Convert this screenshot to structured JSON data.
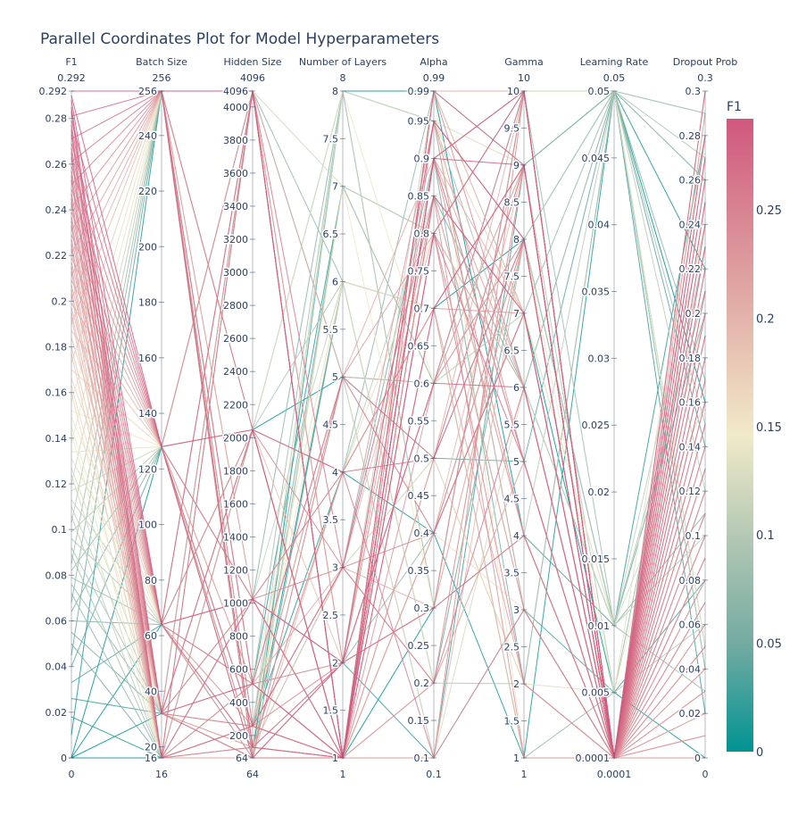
{
  "chart_data": {
    "type": "parallel-coordinates",
    "title": "Parallel Coordinates Plot for Model Hyperparameters",
    "color_dimension": "F1",
    "colorscale": [
      "#009392",
      "#72aaa1",
      "#b1c7b3",
      "#f1eac8",
      "#e5b9ad",
      "#d98994",
      "#d0587e"
    ],
    "colorbar": {
      "title": "F1",
      "min": 0,
      "max": 0.292,
      "ticks": [
        "0",
        "0.05",
        "0.1",
        "0.15",
        "0.2",
        "0.25"
      ],
      "tick_values": [
        0,
        0.05,
        0.1,
        0.15,
        0.2,
        0.25
      ]
    },
    "dimensions": [
      {
        "label": "F1",
        "min": 0,
        "max": 0.292,
        "min_label": "0",
        "max_label": "0.292",
        "ticks": [
          0,
          0.02,
          0.04,
          0.06,
          0.08,
          0.1,
          0.12,
          0.14,
          0.16,
          0.18,
          0.2,
          0.22,
          0.24,
          0.26,
          0.28
        ],
        "tick_labels": [
          "0",
          "0.02",
          "0.04",
          "0.06",
          "0.08",
          "0.1",
          "0.12",
          "0.14",
          "0.16",
          "0.18",
          "0.2",
          "0.22",
          "0.24",
          "0.26",
          "0.28"
        ]
      },
      {
        "label": "Batch Size",
        "min": 16,
        "max": 256,
        "min_label": "16",
        "max_label": "256",
        "ticks": [
          20,
          40,
          60,
          80,
          100,
          120,
          140,
          160,
          180,
          200,
          220,
          240
        ],
        "tick_labels": [
          "20",
          "40",
          "60",
          "80",
          "100",
          "120",
          "140",
          "160",
          "180",
          "200",
          "220",
          "240"
        ]
      },
      {
        "label": "Hidden Size",
        "min": 64,
        "max": 4096,
        "min_label": "64",
        "max_label": "4096",
        "ticks": [
          200,
          400,
          600,
          800,
          1000,
          1200,
          1400,
          1600,
          1800,
          2000,
          2200,
          2400,
          2600,
          2800,
          3000,
          3200,
          3400,
          3600,
          3800,
          4000
        ],
        "tick_labels": [
          "200",
          "400",
          "600",
          "800",
          "1000",
          "1200",
          "1400",
          "1600",
          "1800",
          "2000",
          "2200",
          "2400",
          "2600",
          "2800",
          "3000",
          "3200",
          "3400",
          "3600",
          "3800",
          "4000"
        ]
      },
      {
        "label": "Number of Layers",
        "min": 1,
        "max": 8,
        "min_label": "1",
        "max_label": "8",
        "ticks": [
          1.5,
          2,
          2.5,
          3,
          3.5,
          4,
          4.5,
          5,
          5.5,
          6,
          6.5,
          7,
          7.5
        ],
        "tick_labels": [
          "1.5",
          "2",
          "2.5",
          "3",
          "3.5",
          "4",
          "4.5",
          "5",
          "5.5",
          "6",
          "6.5",
          "7",
          "7.5"
        ]
      },
      {
        "label": "Alpha",
        "min": 0.1,
        "max": 0.99,
        "min_label": "0.1",
        "max_label": "0.99",
        "ticks": [
          0.15,
          0.2,
          0.25,
          0.3,
          0.35,
          0.4,
          0.45,
          0.5,
          0.55,
          0.6,
          0.65,
          0.7,
          0.75,
          0.8,
          0.85,
          0.9,
          0.95
        ],
        "tick_labels": [
          "0.15",
          "0.2",
          "0.25",
          "0.3",
          "0.35",
          "0.4",
          "0.45",
          "0.5",
          "0.55",
          "0.6",
          "0.65",
          "0.7",
          "0.75",
          "0.8",
          "0.85",
          "0.9",
          "0.95"
        ]
      },
      {
        "label": "Gamma",
        "min": 1,
        "max": 10,
        "min_label": "1",
        "max_label": "10",
        "ticks": [
          1.5,
          2,
          2.5,
          3,
          3.5,
          4,
          4.5,
          5,
          5.5,
          6,
          6.5,
          7,
          7.5,
          8,
          8.5,
          9,
          9.5
        ],
        "tick_labels": [
          "1.5",
          "2",
          "2.5",
          "3",
          "3.5",
          "4",
          "4.5",
          "5",
          "5.5",
          "6",
          "6.5",
          "7",
          "7.5",
          "8",
          "8.5",
          "9",
          "9.5"
        ]
      },
      {
        "label": "Learning Rate",
        "min": 0.0001,
        "max": 0.05,
        "min_label": "0.0001",
        "max_label": "0.05",
        "ticks": [
          0.005,
          0.01,
          0.015,
          0.02,
          0.025,
          0.03,
          0.035,
          0.04,
          0.045
        ],
        "tick_labels": [
          "0.005",
          "0.01",
          "0.015",
          "0.02",
          "0.025",
          "0.03",
          "0.035",
          "0.04",
          "0.045"
        ]
      },
      {
        "label": "Dropout Prob",
        "min": 0,
        "max": 0.3,
        "min_label": "0",
        "max_label": "0.3",
        "ticks": [
          0.02,
          0.04,
          0.06,
          0.08,
          0.1,
          0.12,
          0.14,
          0.16,
          0.18,
          0.2,
          0.22,
          0.24,
          0.26,
          0.28
        ],
        "tick_labels": [
          "0.02",
          "0.04",
          "0.06",
          "0.08",
          "0.1",
          "0.12",
          "0.14",
          "0.16",
          "0.18",
          "0.2",
          "0.22",
          "0.24",
          "0.26",
          "0.28"
        ]
      }
    ],
    "records": [
      [
        0.292,
        256,
        4096,
        1,
        0.9,
        9,
        0.0001,
        0.3
      ],
      [
        0.29,
        128,
        2048,
        1,
        0.8,
        10,
        0.0001,
        0.28
      ],
      [
        0.288,
        64,
        1024,
        2,
        0.95,
        8,
        0.0001,
        0.27
      ],
      [
        0.285,
        32,
        512,
        1,
        0.7,
        9,
        0.0001,
        0.26
      ],
      [
        0.283,
        16,
        256,
        3,
        0.85,
        7,
        0.0001,
        0.25
      ],
      [
        0.281,
        256,
        128,
        1,
        0.9,
        10,
        0.0001,
        0.24
      ],
      [
        0.279,
        128,
        64,
        2,
        0.6,
        6,
        0.0001,
        0.23
      ],
      [
        0.277,
        64,
        4096,
        1,
        0.99,
        9,
        0.0001,
        0.22
      ],
      [
        0.275,
        32,
        2048,
        4,
        0.5,
        8,
        0.0001,
        0.21
      ],
      [
        0.273,
        16,
        1024,
        1,
        0.8,
        5,
        0.0001,
        0.2
      ],
      [
        0.271,
        256,
        512,
        5,
        0.4,
        7,
        0.0001,
        0.19
      ],
      [
        0.269,
        128,
        256,
        1,
        0.9,
        10,
        0.0001,
        0.18
      ],
      [
        0.267,
        64,
        128,
        2,
        0.3,
        4,
        0.0001,
        0.17
      ],
      [
        0.265,
        32,
        64,
        1,
        0.7,
        9,
        0.0001,
        0.16
      ],
      [
        0.263,
        16,
        4096,
        3,
        0.2,
        6,
        0.0001,
        0.15
      ],
      [
        0.261,
        256,
        2048,
        1,
        0.95,
        8,
        0.0001,
        0.14
      ],
      [
        0.259,
        128,
        1024,
        4,
        0.1,
        3,
        0.0001,
        0.13
      ],
      [
        0.257,
        64,
        512,
        1,
        0.85,
        7,
        0.0001,
        0.12
      ],
      [
        0.255,
        32,
        256,
        2,
        0.6,
        10,
        0.0001,
        0.11
      ],
      [
        0.253,
        16,
        128,
        1,
        0.9,
        5,
        0.0001,
        0.1
      ],
      [
        0.251,
        256,
        64,
        5,
        0.5,
        9,
        0.0001,
        0.09
      ],
      [
        0.249,
        128,
        4096,
        1,
        0.8,
        2,
        0.0001,
        0.08
      ],
      [
        0.247,
        64,
        2048,
        3,
        0.4,
        8,
        0.0001,
        0.07
      ],
      [
        0.245,
        32,
        1024,
        1,
        0.99,
        6,
        0.0001,
        0.06
      ],
      [
        0.243,
        16,
        512,
        2,
        0.3,
        10,
        0.0001,
        0.05
      ],
      [
        0.241,
        256,
        256,
        1,
        0.9,
        4,
        0.0001,
        0.04
      ],
      [
        0.239,
        128,
        128,
        4,
        0.7,
        7,
        0.0001,
        0.03
      ],
      [
        0.237,
        64,
        64,
        1,
        0.2,
        9,
        0.0001,
        0.02
      ],
      [
        0.235,
        32,
        4096,
        2,
        0.85,
        1,
        0.0001,
        0.01
      ],
      [
        0.233,
        16,
        2048,
        1,
        0.6,
        8,
        0.0001,
        0
      ],
      [
        0.231,
        256,
        1024,
        3,
        0.95,
        5,
        0.0001,
        0.29
      ],
      [
        0.229,
        128,
        512,
        1,
        0.1,
        10,
        0.0001,
        0.27
      ],
      [
        0.227,
        64,
        256,
        5,
        0.8,
        3,
        0.0001,
        0.25
      ],
      [
        0.225,
        32,
        128,
        1,
        0.5,
        9,
        0.0001,
        0.23
      ],
      [
        0.223,
        16,
        64,
        2,
        0.9,
        6,
        0.0001,
        0.21
      ],
      [
        0.221,
        256,
        4096,
        1,
        0.4,
        7,
        0.0001,
        0.19
      ],
      [
        0.219,
        128,
        2048,
        4,
        0.7,
        2,
        0.0001,
        0.17
      ],
      [
        0.217,
        64,
        1024,
        1,
        0.99,
        10,
        0.0001,
        0.15
      ],
      [
        0.215,
        32,
        512,
        3,
        0.3,
        8,
        0.0001,
        0.13
      ],
      [
        0.213,
        16,
        256,
        1,
        0.85,
        4,
        0.0001,
        0.11
      ],
      [
        0.211,
        256,
        128,
        2,
        0.6,
        9,
        0.0001,
        0.09
      ],
      [
        0.209,
        128,
        64,
        1,
        0.2,
        5,
        0.0001,
        0.07
      ],
      [
        0.207,
        64,
        4096,
        5,
        0.9,
        7,
        0.0001,
        0.05
      ],
      [
        0.205,
        32,
        2048,
        1,
        0.5,
        10,
        0.0001,
        0.03
      ],
      [
        0.203,
        16,
        1024,
        2,
        0.95,
        3,
        0.0001,
        0.01
      ],
      [
        0.201,
        256,
        512,
        1,
        0.1,
        8,
        0.0001,
        0.28
      ],
      [
        0.199,
        128,
        256,
        3,
        0.8,
        6,
        0.0001,
        0.26
      ],
      [
        0.197,
        64,
        128,
        1,
        0.4,
        9,
        0.0001,
        0.24
      ],
      [
        0.195,
        32,
        64,
        4,
        0.7,
        1,
        0.0001,
        0.22
      ],
      [
        0.193,
        16,
        4096,
        1,
        0.99,
        7,
        0.0001,
        0.2
      ],
      [
        0.19,
        256,
        2048,
        2,
        0.3,
        10,
        0.0001,
        0.18
      ],
      [
        0.187,
        128,
        1024,
        1,
        0.85,
        4,
        0.0001,
        0.16
      ],
      [
        0.184,
        64,
        512,
        5,
        0.6,
        8,
        0.0001,
        0.14
      ],
      [
        0.18,
        32,
        256,
        1,
        0.9,
        5,
        0.0001,
        0.12
      ],
      [
        0.177,
        16,
        128,
        3,
        0.2,
        9,
        0.0001,
        0.1
      ],
      [
        0.173,
        256,
        64,
        1,
        0.5,
        2,
        0.0001,
        0.08
      ],
      [
        0.17,
        128,
        4096,
        2,
        0.95,
        7,
        0.0001,
        0.06
      ],
      [
        0.166,
        64,
        2048,
        1,
        0.1,
        10,
        0.0001,
        0.04
      ],
      [
        0.163,
        32,
        1024,
        4,
        0.8,
        6,
        0.0001,
        0.02
      ],
      [
        0.16,
        16,
        512,
        1,
        0.4,
        3,
        0.0001,
        0
      ],
      [
        0.156,
        256,
        256,
        6,
        0.7,
        9,
        0.0001,
        0.3
      ],
      [
        0.152,
        128,
        128,
        1,
        0.99,
        1,
        0.0001,
        0.25
      ],
      [
        0.149,
        64,
        64,
        7,
        0.3,
        8,
        0.005,
        0.2
      ],
      [
        0.145,
        32,
        4096,
        2,
        0.85,
        4,
        0.0001,
        0.15
      ],
      [
        0.142,
        16,
        2048,
        8,
        0.6,
        7,
        0.01,
        0.1
      ],
      [
        0.138,
        256,
        1024,
        1,
        0.9,
        10,
        0.05,
        0.05
      ],
      [
        0.134,
        128,
        512,
        6,
        0.2,
        5,
        0.0001,
        0
      ],
      [
        0.131,
        64,
        256,
        3,
        0.5,
        2,
        0.005,
        0.28
      ],
      [
        0.127,
        32,
        128,
        8,
        0.95,
        9,
        0.0001,
        0.22
      ],
      [
        0.124,
        16,
        64,
        5,
        0.1,
        6,
        0.01,
        0.16
      ],
      [
        0.12,
        256,
        4096,
        7,
        0.8,
        3,
        0.0001,
        0.1
      ],
      [
        0.117,
        128,
        2048,
        1,
        0.4,
        8,
        0.05,
        0.04
      ],
      [
        0.113,
        64,
        1024,
        6,
        0.7,
        1,
        0.0001,
        0.3
      ],
      [
        0.11,
        32,
        512,
        2,
        0.99,
        7,
        0.01,
        0.24
      ],
      [
        0.106,
        16,
        256,
        8,
        0.3,
        10,
        0.0001,
        0.18
      ],
      [
        0.103,
        256,
        128,
        4,
        0.85,
        4,
        0.05,
        0.12
      ],
      [
        0.099,
        128,
        64,
        7,
        0.6,
        9,
        0.005,
        0.06
      ],
      [
        0.096,
        64,
        4096,
        1,
        0.9,
        5,
        0.0001,
        0
      ],
      [
        0.092,
        32,
        2048,
        6,
        0.2,
        2,
        0.05,
        0.27
      ],
      [
        0.089,
        16,
        1024,
        3,
        0.5,
        8,
        0.01,
        0.21
      ],
      [
        0.085,
        256,
        512,
        8,
        0.95,
        6,
        0.05,
        0.15
      ],
      [
        0.082,
        128,
        256,
        5,
        0.1,
        3,
        0.0001,
        0.09
      ],
      [
        0.079,
        64,
        128,
        7,
        0.8,
        10,
        0.01,
        0.03
      ],
      [
        0.076,
        32,
        64,
        2,
        0.4,
        7,
        0.05,
        0.29
      ],
      [
        0.072,
        16,
        4096,
        6,
        0.7,
        1,
        0.005,
        0.23
      ],
      [
        0.068,
        256,
        2048,
        4,
        0.99,
        9,
        0.05,
        0.17
      ],
      [
        0.064,
        128,
        1024,
        8,
        0.3,
        4,
        0.01,
        0.11
      ],
      [
        0.06,
        64,
        512,
        1,
        0.85,
        6,
        0.05,
        0.05
      ],
      [
        0.055,
        32,
        256,
        7,
        0.6,
        10,
        0.0001,
        0
      ],
      [
        0.05,
        16,
        128,
        3,
        0.9,
        2,
        0.05,
        0.26
      ],
      [
        0.045,
        256,
        64,
        6,
        0.2,
        8,
        0.01,
        0.2
      ],
      [
        0.04,
        128,
        4096,
        5,
        0.5,
        5,
        0.05,
        0.14
      ],
      [
        0.033,
        64,
        2048,
        8,
        0.95,
        3,
        0.005,
        0.08
      ],
      [
        0.026,
        32,
        1024,
        2,
        0.1,
        9,
        0.05,
        0.02
      ],
      [
        0.018,
        16,
        512,
        7,
        0.8,
        6,
        0.01,
        0.28
      ],
      [
        0.01,
        256,
        256,
        4,
        0.4,
        1,
        0.05,
        0.22
      ],
      [
        0,
        128,
        128,
        6,
        0.7,
        8,
        0.05,
        0.16
      ],
      [
        0,
        64,
        64,
        8,
        0.99,
        4,
        0.01,
        0.1
      ],
      [
        0,
        32,
        4096,
        1,
        0.3,
        10,
        0.05,
        0.04
      ],
      [
        0,
        16,
        2048,
        5,
        0.6,
        7,
        0.005,
        0
      ]
    ]
  }
}
